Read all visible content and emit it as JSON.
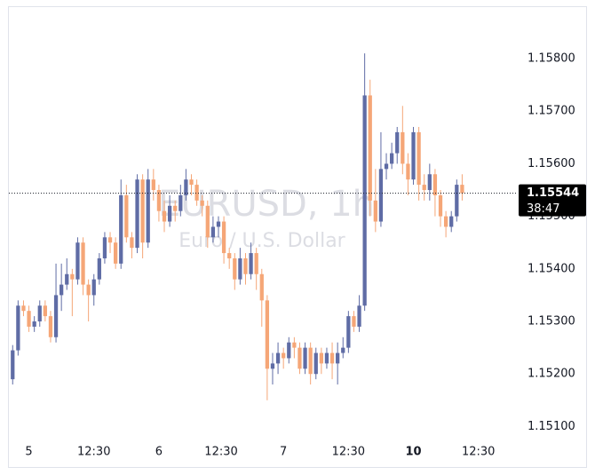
{
  "chart_data": {
    "type": "candlestick",
    "watermark": "EURUSD, 1h",
    "watermark_subtitle": "Euro / U.S. Dollar",
    "last_price": 1.15544,
    "countdown": "38:47",
    "up_color": "#5f6ca5",
    "down_color": "#f5a677",
    "open": [
      1.1519,
      1.15245,
      1.1533,
      1.1532,
      1.1529,
      1.153,
      1.1533,
      1.1531,
      1.1527,
      1.1535,
      1.1537,
      1.1539,
      1.1538,
      1.1545,
      1.1537,
      1.1535,
      1.1538,
      1.1542,
      1.1546,
      1.1545,
      1.1541,
      1.1554,
      1.1546,
      1.1544,
      1.1557,
      1.1545,
      1.1557,
      1.1555,
      1.1551,
      1.1549,
      1.1552,
      1.1551,
      1.1554,
      1.1557,
      1.1556,
      1.1553,
      1.1552,
      1.1546,
      1.1548,
      1.1549,
      1.1543,
      1.1542,
      1.1538,
      1.1542,
      1.1539,
      1.1543,
      1.1539,
      1.1534,
      1.1521,
      1.1522,
      1.1524,
      1.1523,
      1.1526,
      1.1525,
      1.1521,
      1.1525,
      1.152,
      1.1524,
      1.1522,
      1.1524,
      1.1522,
      1.1524,
      1.1525,
      1.1531,
      1.1529,
      1.1533,
      1.1573,
      1.1553,
      1.1549,
      1.1559,
      1.156,
      1.1562,
      1.1566,
      1.156,
      1.1557,
      1.1566,
      1.1556,
      1.1555,
      1.1558,
      1.1554,
      1.155,
      1.1548,
      1.155,
      1.1556
    ],
    "high": [
      1.15255,
      1.1534,
      1.1534,
      1.1533,
      1.1531,
      1.1534,
      1.1534,
      1.1532,
      1.1541,
      1.1541,
      1.1542,
      1.154,
      1.1546,
      1.1546,
      1.1538,
      1.1539,
      1.1543,
      1.1547,
      1.1547,
      1.1546,
      1.1557,
      1.1556,
      1.1547,
      1.1558,
      1.1558,
      1.1559,
      1.1559,
      1.1556,
      1.1553,
      1.1554,
      1.1553,
      1.1556,
      1.1559,
      1.1558,
      1.1557,
      1.1554,
      1.1553,
      1.155,
      1.155,
      1.155,
      1.1544,
      1.1543,
      1.1544,
      1.1543,
      1.1545,
      1.1544,
      1.154,
      1.1535,
      1.1524,
      1.1526,
      1.1525,
      1.1527,
      1.1527,
      1.1526,
      1.1526,
      1.1526,
      1.1525,
      1.1525,
      1.1525,
      1.1526,
      1.1526,
      1.1527,
      1.1532,
      1.1532,
      1.1535,
      1.1581,
      1.1576,
      1.1559,
      1.1566,
      1.1562,
      1.1564,
      1.1567,
      1.1571,
      1.1562,
      1.1567,
      1.1567,
      1.1558,
      1.156,
      1.1559,
      1.1555,
      1.1551,
      1.1551,
      1.1557,
      1.1558
    ],
    "low": [
      1.1518,
      1.15235,
      1.1531,
      1.1528,
      1.1528,
      1.1529,
      1.153,
      1.1526,
      1.1526,
      1.1532,
      1.1536,
      1.1531,
      1.1537,
      1.1535,
      1.153,
      1.1533,
      1.1537,
      1.1541,
      1.1543,
      1.154,
      1.154,
      1.1545,
      1.1542,
      1.1543,
      1.1542,
      1.1544,
      1.1553,
      1.1549,
      1.1547,
      1.1548,
      1.1549,
      1.155,
      1.1553,
      1.1554,
      1.1552,
      1.155,
      1.1544,
      1.1545,
      1.1546,
      1.1541,
      1.154,
      1.1536,
      1.1537,
      1.1537,
      1.1538,
      1.1536,
      1.1529,
      1.1515,
      1.1518,
      1.152,
      1.1521,
      1.1522,
      1.1523,
      1.152,
      1.152,
      1.1518,
      1.1519,
      1.152,
      1.1521,
      1.1519,
      1.1518,
      1.1523,
      1.1524,
      1.1528,
      1.1528,
      1.1532,
      1.155,
      1.1547,
      1.1548,
      1.1557,
      1.1559,
      1.156,
      1.1558,
      1.1554,
      1.1556,
      1.1553,
      1.1553,
      1.1553,
      1.155,
      1.1548,
      1.1546,
      1.1547,
      1.1549,
      1.1553
    ],
    "close": [
      1.15245,
      1.1533,
      1.1532,
      1.1529,
      1.153,
      1.1533,
      1.1531,
      1.1527,
      1.1535,
      1.1537,
      1.1539,
      1.1538,
      1.1545,
      1.1537,
      1.1535,
      1.1538,
      1.1542,
      1.1546,
      1.1545,
      1.1541,
      1.1554,
      1.1546,
      1.1544,
      1.1557,
      1.1545,
      1.1557,
      1.1555,
      1.1551,
      1.1549,
      1.1552,
      1.1551,
      1.1554,
      1.1557,
      1.1556,
      1.1553,
      1.1552,
      1.1546,
      1.1548,
      1.1549,
      1.1543,
      1.1542,
      1.1538,
      1.1542,
      1.1539,
      1.1543,
      1.1539,
      1.1534,
      1.1521,
      1.1522,
      1.1524,
      1.1523,
      1.1526,
      1.1525,
      1.1521,
      1.1525,
      1.152,
      1.1524,
      1.1522,
      1.1524,
      1.1522,
      1.1524,
      1.1525,
      1.1531,
      1.1529,
      1.1533,
      1.1573,
      1.1553,
      1.1549,
      1.1559,
      1.156,
      1.1562,
      1.1566,
      1.156,
      1.1557,
      1.1566,
      1.1556,
      1.1555,
      1.1558,
      1.1554,
      1.155,
      1.1548,
      1.155,
      1.1556,
      1.15544
    ],
    "xlim": [
      -0.7,
      93.1
    ],
    "xticks": [
      {
        "value": 3,
        "label": "5"
      },
      {
        "value": 15,
        "label": "12:30"
      },
      {
        "value": 27,
        "label": "6"
      },
      {
        "value": 38.5,
        "label": "12:30"
      },
      {
        "value": 50,
        "label": "7"
      },
      {
        "value": 62,
        "label": "12:30"
      },
      {
        "value": 74,
        "label": "10"
      },
      {
        "value": 86,
        "label": "12:30"
      }
    ],
    "ylim": [
      1.15072,
      1.15898
    ],
    "yticks": [
      {
        "value": 1.151,
        "label": "1.15100"
      },
      {
        "value": 1.152,
        "label": "1.15200"
      },
      {
        "value": 1.153,
        "label": "1.15300"
      },
      {
        "value": 1.154,
        "label": "1.15400"
      },
      {
        "value": 1.155,
        "label": "1.15500"
      },
      {
        "value": 1.156,
        "label": "1.15600"
      },
      {
        "value": 1.157,
        "label": "1.15700"
      },
      {
        "value": 1.158,
        "label": "1.15800"
      }
    ]
  }
}
